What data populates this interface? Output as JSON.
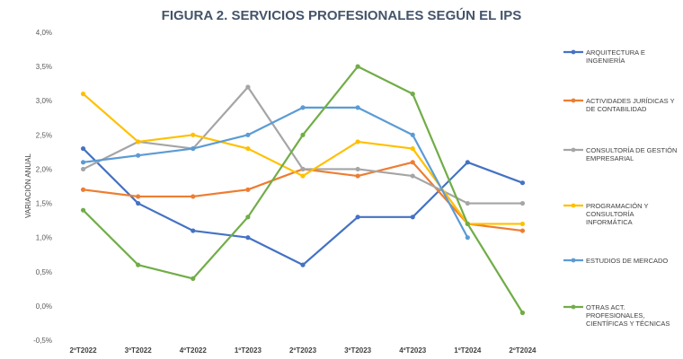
{
  "chart_data": {
    "type": "line",
    "title": "FIGURA 2. SERVICIOS PROFESIONALES SEGÚN EL IPS",
    "xlabel": "",
    "ylabel": "VARIACIÓN ANUAL",
    "categories": [
      "2ºT2022",
      "3ºT2022",
      "4ºT2022",
      "1ºT2023",
      "2ºT2023",
      "3ºT2023",
      "4ºT2023",
      "1ºT2024",
      "2ºT2024"
    ],
    "ylim": [
      -0.5,
      4.0
    ],
    "yticks": [
      -0.5,
      0.0,
      0.5,
      1.0,
      1.5,
      2.0,
      2.5,
      3.0,
      3.5,
      4.0
    ],
    "ytick_labels": [
      "-0,5%",
      "0,0%",
      "0,5%",
      "1,0%",
      "1,5%",
      "2,0%",
      "2,5%",
      "3,0%",
      "3,5%",
      "4,0%"
    ],
    "grid": false,
    "legend_position": "right",
    "series": [
      {
        "name": "ARQUITECTURA E INGENIERÍA",
        "legend_lines": [
          "ARQUITECTURA E",
          "INGENIERÍA"
        ],
        "color": "#4472c4",
        "values": [
          2.3,
          1.5,
          1.1,
          1.0,
          0.6,
          1.3,
          1.3,
          2.1,
          1.8
        ]
      },
      {
        "name": "ACTIVIDADES JURÍDICAS Y DE CONTABILIDAD",
        "legend_lines": [
          "ACTIVIDADES JURÍDICAS Y",
          "DE CONTABILIDAD"
        ],
        "color": "#ed7d31",
        "values": [
          1.7,
          1.6,
          1.6,
          1.7,
          2.0,
          1.9,
          2.1,
          1.2,
          1.1
        ]
      },
      {
        "name": "CONSULTORÍA DE GESTIÓN EMPRESARIAL",
        "legend_lines": [
          "CONSULTORÍA DE GESTIÓN",
          "EMPRESARIAL"
        ],
        "color": "#a5a5a5",
        "values": [
          2.0,
          2.4,
          2.3,
          3.2,
          2.0,
          2.0,
          1.9,
          1.5,
          1.5
        ]
      },
      {
        "name": "PROGRAMACIÓN Y CONSULTORÍA INFORMÁTICA",
        "legend_lines": [
          "PROGRAMACIÓN Y",
          "CONSULTORÍA",
          "INFORMÁTICA"
        ],
        "color": "#ffc000",
        "values": [
          3.1,
          2.4,
          2.5,
          2.3,
          1.9,
          2.4,
          2.3,
          1.2,
          1.2
        ]
      },
      {
        "name": "ESTUDIOS DE MERCADO",
        "legend_lines": [
          "ESTUDIOS DE MERCADO"
        ],
        "color": "#5b9bd5",
        "values": [
          2.1,
          2.2,
          2.3,
          2.5,
          2.9,
          2.9,
          2.5,
          1.0,
          null
        ]
      },
      {
        "name": "OTRAS ACT. PROFESIONALES, CIENTÍFICAS Y TÉCNICAS",
        "legend_lines": [
          "OTRAS ACT.",
          "PROFESIONALES,",
          "CIENTÍFICAS Y TÉCNICAS"
        ],
        "color": "#70ad47",
        "values": [
          1.4,
          0.6,
          0.4,
          1.3,
          2.5,
          3.5,
          3.1,
          1.2,
          -0.1
        ]
      }
    ]
  }
}
